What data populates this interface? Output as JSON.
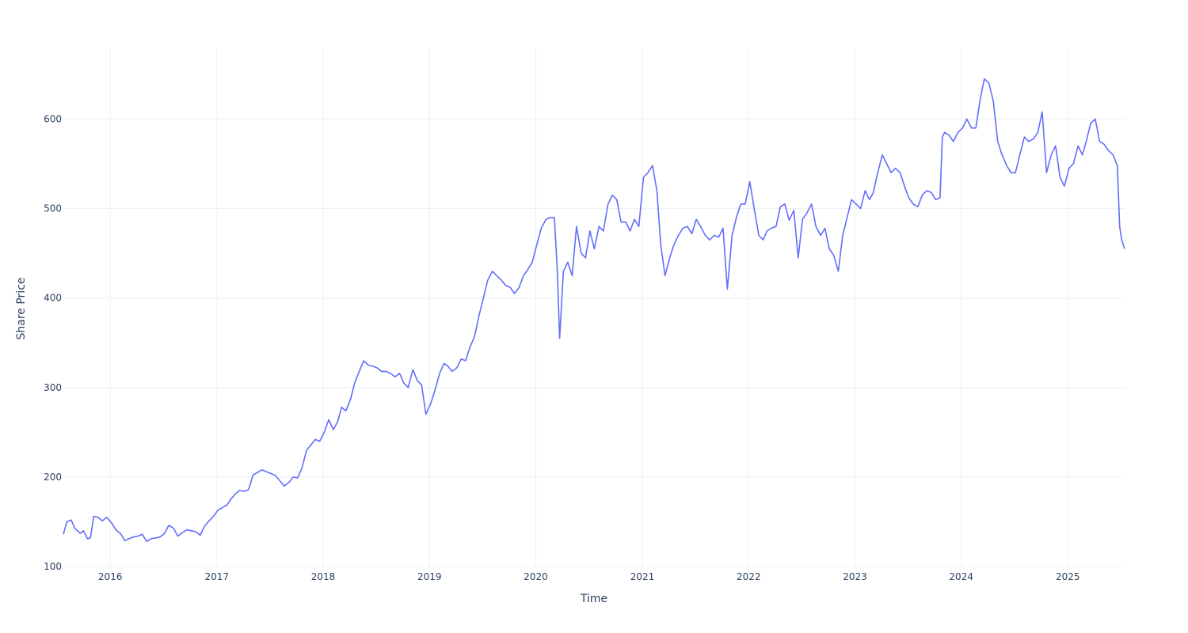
{
  "chart_data": {
    "type": "line",
    "title": "",
    "xlabel": "Time",
    "ylabel": "Share Price",
    "x_tick_labels": [
      "2016",
      "2017",
      "2018",
      "2019",
      "2020",
      "2021",
      "2022",
      "2023",
      "2024",
      "2025"
    ],
    "y_tick_labels": [
      "100",
      "200",
      "300",
      "400",
      "500",
      "600"
    ],
    "xlim": [
      "2015-07-24",
      "2025-07-15"
    ],
    "ylim": [
      100,
      680
    ],
    "grid": true,
    "legend": "none",
    "line_color": "#636efa",
    "series": [
      {
        "x": [
          "2015-07-24",
          "2015-08-05",
          "2015-08-20",
          "2015-09-01",
          "2015-09-20",
          "2015-10-01",
          "2015-10-15",
          "2015-10-25",
          "2015-11-05",
          "2015-11-20",
          "2015-12-05",
          "2015-12-20",
          "2016-01-05",
          "2016-01-20",
          "2016-02-05",
          "2016-02-20",
          "2016-03-05",
          "2016-03-20",
          "2016-04-05",
          "2016-04-20",
          "2016-05-05",
          "2016-05-20",
          "2016-06-05",
          "2016-06-20",
          "2016-07-05",
          "2016-07-20",
          "2016-08-05",
          "2016-08-20",
          "2016-09-05",
          "2016-09-20",
          "2016-10-05",
          "2016-10-20",
          "2016-11-05",
          "2016-11-20",
          "2016-12-05",
          "2016-12-20",
          "2017-01-05",
          "2017-01-20",
          "2017-02-05",
          "2017-02-20",
          "2017-03-05",
          "2017-03-20",
          "2017-04-05",
          "2017-04-20",
          "2017-05-05",
          "2017-05-20",
          "2017-06-05",
          "2017-06-20",
          "2017-07-05",
          "2017-07-20",
          "2017-08-05",
          "2017-08-20",
          "2017-09-05",
          "2017-09-20",
          "2017-10-05",
          "2017-10-20",
          "2017-11-05",
          "2017-11-20",
          "2017-12-05",
          "2017-12-20",
          "2018-01-05",
          "2018-01-20",
          "2018-02-05",
          "2018-02-20",
          "2018-03-05",
          "2018-03-20",
          "2018-04-05",
          "2018-04-20",
          "2018-05-05",
          "2018-05-20",
          "2018-06-05",
          "2018-06-20",
          "2018-07-05",
          "2018-07-20",
          "2018-08-05",
          "2018-08-20",
          "2018-09-05",
          "2018-09-20",
          "2018-10-05",
          "2018-10-20",
          "2018-11-05",
          "2018-11-20",
          "2018-12-05",
          "2018-12-20",
          "2019-01-05",
          "2019-01-20",
          "2019-02-05",
          "2019-02-20",
          "2019-03-05",
          "2019-03-20",
          "2019-04-05",
          "2019-04-20",
          "2019-05-05",
          "2019-05-20",
          "2019-06-05",
          "2019-06-20",
          "2019-07-05",
          "2019-07-20",
          "2019-08-05",
          "2019-08-20",
          "2019-09-05",
          "2019-09-20",
          "2019-10-05",
          "2019-10-20",
          "2019-11-05",
          "2019-11-20",
          "2019-12-05",
          "2019-12-20",
          "2020-01-05",
          "2020-01-20",
          "2020-02-05",
          "2020-02-20",
          "2020-03-05",
          "2020-03-15",
          "2020-03-23",
          "2020-04-05",
          "2020-04-20",
          "2020-05-05",
          "2020-05-20",
          "2020-06-05",
          "2020-06-20",
          "2020-07-05",
          "2020-07-20",
          "2020-08-05",
          "2020-08-20",
          "2020-09-05",
          "2020-09-20",
          "2020-10-05",
          "2020-10-20",
          "2020-11-05",
          "2020-11-20",
          "2020-12-05",
          "2020-12-20",
          "2021-01-05",
          "2021-01-20",
          "2021-02-05",
          "2021-02-20",
          "2021-03-05",
          "2021-03-20",
          "2021-04-05",
          "2021-04-20",
          "2021-05-05",
          "2021-05-20",
          "2021-06-05",
          "2021-06-20",
          "2021-07-05",
          "2021-07-20",
          "2021-08-05",
          "2021-08-20",
          "2021-09-05",
          "2021-09-20",
          "2021-10-05",
          "2021-10-20",
          "2021-11-05",
          "2021-11-20",
          "2021-12-05",
          "2021-12-20",
          "2022-01-05",
          "2022-01-20",
          "2022-02-05",
          "2022-02-20",
          "2022-03-05",
          "2022-03-20",
          "2022-04-05",
          "2022-04-20",
          "2022-05-05",
          "2022-05-20",
          "2022-06-05",
          "2022-06-20",
          "2022-07-05",
          "2022-07-20",
          "2022-08-05",
          "2022-08-20",
          "2022-09-05",
          "2022-09-20",
          "2022-10-05",
          "2022-10-20",
          "2022-11-05",
          "2022-11-20",
          "2022-12-05",
          "2022-12-20",
          "2023-01-05",
          "2023-01-20",
          "2023-02-05",
          "2023-02-20",
          "2023-03-05",
          "2023-03-20",
          "2023-04-05",
          "2023-04-20",
          "2023-05-05",
          "2023-05-20",
          "2023-06-05",
          "2023-06-20",
          "2023-07-05",
          "2023-07-20",
          "2023-08-05",
          "2023-08-20",
          "2023-09-05",
          "2023-09-20",
          "2023-10-05",
          "2023-10-20",
          "2023-10-28",
          "2023-11-05",
          "2023-11-20",
          "2023-12-05",
          "2023-12-20",
          "2024-01-05",
          "2024-01-20",
          "2024-02-05",
          "2024-02-20",
          "2024-03-05",
          "2024-03-20",
          "2024-04-05",
          "2024-04-20",
          "2024-05-05",
          "2024-05-20",
          "2024-06-05",
          "2024-06-20",
          "2024-07-05",
          "2024-07-20",
          "2024-08-05",
          "2024-08-20",
          "2024-09-05",
          "2024-09-20",
          "2024-10-05",
          "2024-10-20",
          "2024-11-05",
          "2024-11-20",
          "2024-12-05",
          "2024-12-20",
          "2025-01-05",
          "2025-01-20",
          "2025-02-05",
          "2025-02-20",
          "2025-03-05",
          "2025-03-20",
          "2025-04-05",
          "2025-04-20",
          "2025-05-05",
          "2025-05-20",
          "2025-06-05",
          "2025-06-20",
          "2025-06-28",
          "2025-07-05",
          "2025-07-15"
        ],
        "y": [
          136,
          150,
          152,
          143,
          137,
          140,
          131,
          132,
          156,
          155,
          151,
          155,
          149,
          141,
          137,
          129,
          131,
          133,
          134,
          136,
          128,
          131,
          132,
          133,
          137,
          146,
          143,
          134,
          138,
          141,
          140,
          139,
          135,
          145,
          151,
          156,
          163,
          166,
          169,
          176,
          181,
          185,
          184,
          186,
          202,
          205,
          208,
          206,
          204,
          202,
          196,
          190,
          194,
          200,
          199,
          210,
          230,
          236,
          242,
          240,
          250,
          264,
          253,
          262,
          278,
          274,
          287,
          306,
          318,
          330,
          325,
          324,
          322,
          318,
          318,
          316,
          312,
          316,
          305,
          300,
          320,
          308,
          303,
          270,
          282,
          297,
          316,
          327,
          324,
          318,
          322,
          332,
          330,
          345,
          357,
          380,
          400,
          420,
          430,
          425,
          420,
          414,
          412,
          405,
          412,
          425,
          432,
          440,
          460,
          478,
          488,
          490,
          490,
          430,
          355,
          430,
          440,
          425,
          480,
          450,
          445,
          475,
          455,
          480,
          475,
          505,
          515,
          510,
          485,
          485,
          475,
          488,
          480,
          535,
          540,
          548,
          520,
          460,
          425,
          445,
          460,
          470,
          478,
          480,
          472,
          488,
          480,
          470,
          465,
          470,
          468,
          478,
          410,
          470,
          490,
          505,
          505,
          530,
          500,
          470,
          465,
          475,
          478,
          480,
          502,
          505,
          487,
          498,
          445,
          488,
          495,
          505,
          480,
          470,
          478,
          455,
          448,
          430,
          470,
          490,
          510,
          505,
          500,
          520,
          510,
          518,
          540,
          560,
          550,
          540,
          545,
          540,
          525,
          512,
          505,
          502,
          515,
          520,
          518,
          510,
          512,
          580,
          585,
          582,
          575,
          585,
          590,
          600,
          590,
          590,
          620,
          645,
          640,
          620,
          575,
          560,
          548,
          540,
          540,
          560,
          580,
          575,
          578,
          585,
          608,
          540,
          560,
          570,
          535,
          525,
          545,
          550,
          570,
          560,
          575,
          595,
          600,
          575,
          572,
          565,
          560,
          548,
          480,
          465,
          455
        ]
      }
    ]
  }
}
